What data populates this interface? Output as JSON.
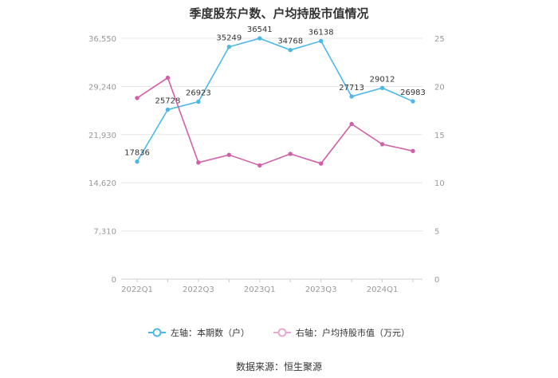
{
  "title": "季度股东户数、户均持股市值情况",
  "source": "数据来源：恒生聚源",
  "chart_data": {
    "type": "line",
    "categories": [
      "2022Q1",
      "2022Q2",
      "2022Q3",
      "2022Q4",
      "2023Q1",
      "2023Q2",
      "2023Q3",
      "2023Q4",
      "2024Q1",
      "2024Q2"
    ],
    "x_tick_labels": [
      "2022Q1",
      "2022Q3",
      "2023Q1",
      "2023Q3",
      "2024Q1"
    ],
    "left_axis": {
      "ticks": [
        "0",
        "7,310",
        "14,620",
        "21,930",
        "29,240",
        "36,550"
      ],
      "min": 0,
      "max": 36550
    },
    "right_axis": {
      "ticks": [
        "0",
        "5",
        "10",
        "15",
        "20",
        "25"
      ],
      "min": 0,
      "max": 25
    },
    "grid": true,
    "legend_position": "bottom",
    "series": [
      {
        "name": "左轴：本期数（户）",
        "axis": "left",
        "color": "#4db8e8",
        "values": [
          17836,
          25728,
          26923,
          35249,
          36541,
          34768,
          36138,
          27713,
          29012,
          26983
        ],
        "labels": [
          "17836",
          "25728",
          "26923",
          "35249",
          "36541",
          "34768",
          "36138",
          "27713",
          "29012",
          "26983"
        ]
      },
      {
        "name": "右轴：户均持股市值（万元）",
        "axis": "right",
        "color": "#d060a8",
        "values": [
          18.8,
          20.9,
          12.1,
          12.9,
          11.8,
          13.0,
          12.0,
          16.1,
          14.0,
          13.3
        ]
      }
    ]
  }
}
